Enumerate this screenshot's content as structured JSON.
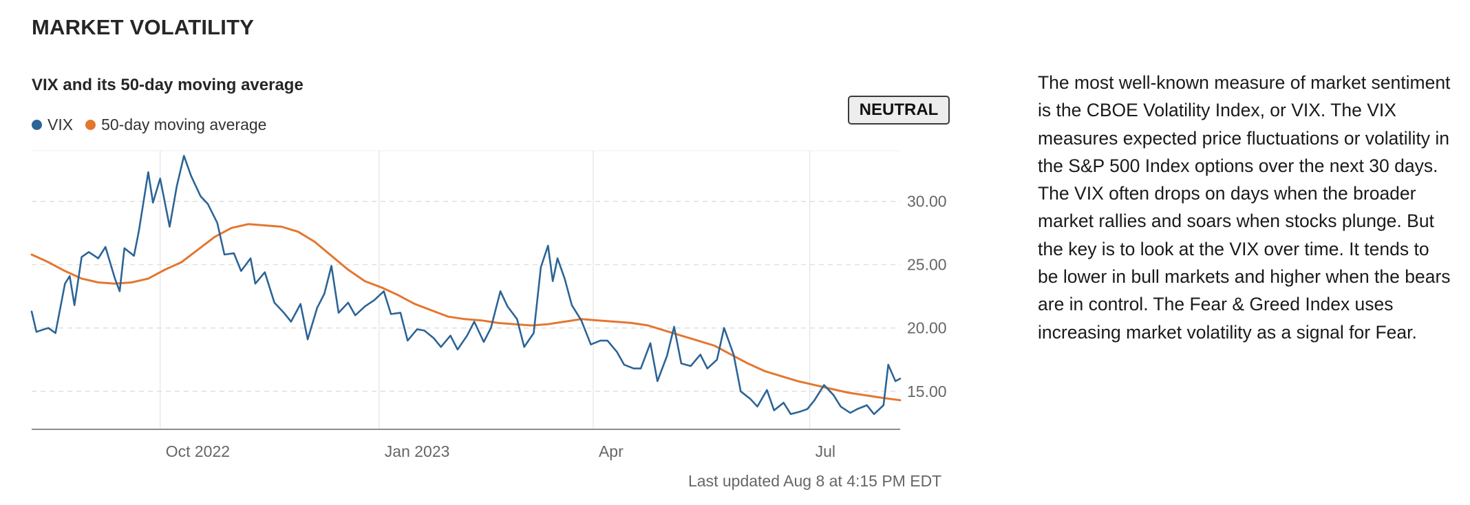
{
  "header": {
    "title": "MARKET VOLATILITY"
  },
  "badge": {
    "label": "NEUTRAL"
  },
  "updated": "Last updated Aug 8 at 4:15 PM EDT",
  "description": "The most well-known measure of market sentiment is the CBOE Volatility Index, or VIX. The VIX measures expected price fluctuations or volatility in the S&P 500 Index options over the next 30 days. The VIX often drops on days when the broader market rallies and soars when stocks plunge. But the key is to look at the VIX over time. It tends to be lower in bull markets and higher when the bears are in control. The Fear & Greed Index uses increasing market volatility as a signal for Fear.",
  "colors": {
    "vix": "#2b6496",
    "ma": "#e4762e",
    "grid": "#d9d9d9",
    "axis": "#8c8c8c"
  },
  "chart_data": {
    "type": "line",
    "title": "VIX and its 50-day moving average",
    "x_range": [
      "2022-08-08",
      "2023-08-08"
    ],
    "ylim": [
      12.0,
      34.0
    ],
    "y_ticks": [
      15,
      20,
      25,
      30
    ],
    "y_tick_labels": [
      "15.00",
      "20.00",
      "25.00",
      "30.00"
    ],
    "x_ticks": [
      {
        "date": "2022-10-01",
        "label": "Oct 2022"
      },
      {
        "date": "2023-01-01",
        "label": "Jan 2023"
      },
      {
        "date": "2023-04-01",
        "label": "Apr"
      },
      {
        "date": "2023-07-01",
        "label": "Jul"
      }
    ],
    "grid": true,
    "legend_position": "top-left",
    "series": [
      {
        "name": "VIX",
        "points": [
          [
            "2022-08-08",
            21.3
          ],
          [
            "2022-08-10",
            19.7
          ],
          [
            "2022-08-15",
            20.0
          ],
          [
            "2022-08-18",
            19.6
          ],
          [
            "2022-08-22",
            23.5
          ],
          [
            "2022-08-24",
            24.1
          ],
          [
            "2022-08-26",
            21.8
          ],
          [
            "2022-08-29",
            25.6
          ],
          [
            "2022-09-01",
            26.0
          ],
          [
            "2022-09-05",
            25.5
          ],
          [
            "2022-09-08",
            26.4
          ],
          [
            "2022-09-12",
            23.9
          ],
          [
            "2022-09-14",
            22.9
          ],
          [
            "2022-09-16",
            26.3
          ],
          [
            "2022-09-20",
            25.7
          ],
          [
            "2022-09-22",
            27.6
          ],
          [
            "2022-09-26",
            32.3
          ],
          [
            "2022-09-28",
            29.9
          ],
          [
            "2022-10-01",
            31.8
          ],
          [
            "2022-10-05",
            28.0
          ],
          [
            "2022-10-08",
            31.2
          ],
          [
            "2022-10-11",
            33.6
          ],
          [
            "2022-10-14",
            32.0
          ],
          [
            "2022-10-18",
            30.4
          ],
          [
            "2022-10-21",
            29.8
          ],
          [
            "2022-10-25",
            28.3
          ],
          [
            "2022-10-28",
            25.8
          ],
          [
            "2022-11-01",
            25.9
          ],
          [
            "2022-11-04",
            24.5
          ],
          [
            "2022-11-08",
            25.5
          ],
          [
            "2022-11-10",
            23.5
          ],
          [
            "2022-11-14",
            24.4
          ],
          [
            "2022-11-18",
            22.0
          ],
          [
            "2022-11-22",
            21.2
          ],
          [
            "2022-11-25",
            20.5
          ],
          [
            "2022-11-29",
            21.9
          ],
          [
            "2022-12-02",
            19.1
          ],
          [
            "2022-12-06",
            21.6
          ],
          [
            "2022-12-09",
            22.7
          ],
          [
            "2022-12-12",
            24.9
          ],
          [
            "2022-12-15",
            21.2
          ],
          [
            "2022-12-19",
            22.0
          ],
          [
            "2022-12-22",
            21.0
          ],
          [
            "2022-12-26",
            21.7
          ],
          [
            "2022-12-30",
            22.2
          ],
          [
            "2023-01-03",
            22.9
          ],
          [
            "2023-01-06",
            21.1
          ],
          [
            "2023-01-10",
            21.2
          ],
          [
            "2023-01-13",
            19.0
          ],
          [
            "2023-01-17",
            19.9
          ],
          [
            "2023-01-20",
            19.8
          ],
          [
            "2023-01-24",
            19.2
          ],
          [
            "2023-01-27",
            18.5
          ],
          [
            "2023-01-31",
            19.4
          ],
          [
            "2023-02-03",
            18.3
          ],
          [
            "2023-02-07",
            19.4
          ],
          [
            "2023-02-10",
            20.5
          ],
          [
            "2023-02-14",
            18.9
          ],
          [
            "2023-02-17",
            20.0
          ],
          [
            "2023-02-21",
            22.9
          ],
          [
            "2023-02-24",
            21.7
          ],
          [
            "2023-02-28",
            20.7
          ],
          [
            "2023-03-03",
            18.5
          ],
          [
            "2023-03-07",
            19.6
          ],
          [
            "2023-03-10",
            24.8
          ],
          [
            "2023-03-13",
            26.5
          ],
          [
            "2023-03-15",
            23.7
          ],
          [
            "2023-03-17",
            25.5
          ],
          [
            "2023-03-20",
            23.9
          ],
          [
            "2023-03-23",
            21.8
          ],
          [
            "2023-03-27",
            20.6
          ],
          [
            "2023-03-31",
            18.7
          ],
          [
            "2023-04-04",
            19.0
          ],
          [
            "2023-04-07",
            19.0
          ],
          [
            "2023-04-11",
            18.1
          ],
          [
            "2023-04-14",
            17.1
          ],
          [
            "2023-04-18",
            16.8
          ],
          [
            "2023-04-21",
            16.8
          ],
          [
            "2023-04-25",
            18.8
          ],
          [
            "2023-04-28",
            15.8
          ],
          [
            "2023-05-02",
            17.8
          ],
          [
            "2023-05-05",
            20.1
          ],
          [
            "2023-05-08",
            17.2
          ],
          [
            "2023-05-12",
            17.0
          ],
          [
            "2023-05-16",
            17.9
          ],
          [
            "2023-05-19",
            16.8
          ],
          [
            "2023-05-23",
            17.5
          ],
          [
            "2023-05-26",
            20.0
          ],
          [
            "2023-05-30",
            17.9
          ],
          [
            "2023-06-02",
            15.0
          ],
          [
            "2023-06-06",
            14.4
          ],
          [
            "2023-06-09",
            13.8
          ],
          [
            "2023-06-13",
            15.1
          ],
          [
            "2023-06-16",
            13.5
          ],
          [
            "2023-06-20",
            14.1
          ],
          [
            "2023-06-23",
            13.2
          ],
          [
            "2023-06-27",
            13.4
          ],
          [
            "2023-06-30",
            13.6
          ],
          [
            "2023-07-03",
            14.3
          ],
          [
            "2023-07-07",
            15.5
          ],
          [
            "2023-07-11",
            14.7
          ],
          [
            "2023-07-14",
            13.8
          ],
          [
            "2023-07-18",
            13.3
          ],
          [
            "2023-07-21",
            13.6
          ],
          [
            "2023-07-25",
            13.9
          ],
          [
            "2023-07-28",
            13.2
          ],
          [
            "2023-08-01",
            13.9
          ],
          [
            "2023-08-03",
            17.1
          ],
          [
            "2023-08-06",
            15.8
          ],
          [
            "2023-08-08",
            16.0
          ]
        ]
      },
      {
        "name": "50-day moving average",
        "points": [
          [
            "2022-08-08",
            25.8
          ],
          [
            "2022-08-15",
            25.2
          ],
          [
            "2022-08-22",
            24.5
          ],
          [
            "2022-08-29",
            23.9
          ],
          [
            "2022-09-05",
            23.6
          ],
          [
            "2022-09-12",
            23.5
          ],
          [
            "2022-09-19",
            23.6
          ],
          [
            "2022-09-26",
            23.9
          ],
          [
            "2022-10-03",
            24.6
          ],
          [
            "2022-10-10",
            25.2
          ],
          [
            "2022-10-17",
            26.2
          ],
          [
            "2022-10-24",
            27.2
          ],
          [
            "2022-10-31",
            27.9
          ],
          [
            "2022-11-07",
            28.2
          ],
          [
            "2022-11-14",
            28.1
          ],
          [
            "2022-11-21",
            28.0
          ],
          [
            "2022-11-28",
            27.6
          ],
          [
            "2022-12-05",
            26.8
          ],
          [
            "2022-12-12",
            25.7
          ],
          [
            "2022-12-19",
            24.6
          ],
          [
            "2022-12-26",
            23.7
          ],
          [
            "2023-01-02",
            23.2
          ],
          [
            "2023-01-09",
            22.6
          ],
          [
            "2023-01-16",
            21.9
          ],
          [
            "2023-01-23",
            21.4
          ],
          [
            "2023-01-30",
            20.9
          ],
          [
            "2023-02-06",
            20.7
          ],
          [
            "2023-02-13",
            20.6
          ],
          [
            "2023-02-20",
            20.4
          ],
          [
            "2023-02-27",
            20.3
          ],
          [
            "2023-03-06",
            20.2
          ],
          [
            "2023-03-13",
            20.3
          ],
          [
            "2023-03-20",
            20.5
          ],
          [
            "2023-03-27",
            20.7
          ],
          [
            "2023-04-03",
            20.6
          ],
          [
            "2023-04-10",
            20.5
          ],
          [
            "2023-04-17",
            20.4
          ],
          [
            "2023-04-24",
            20.2
          ],
          [
            "2023-05-01",
            19.8
          ],
          [
            "2023-05-08",
            19.4
          ],
          [
            "2023-05-15",
            19.0
          ],
          [
            "2023-05-22",
            18.6
          ],
          [
            "2023-05-29",
            17.9
          ],
          [
            "2023-06-05",
            17.2
          ],
          [
            "2023-06-12",
            16.6
          ],
          [
            "2023-06-19",
            16.2
          ],
          [
            "2023-06-26",
            15.8
          ],
          [
            "2023-07-03",
            15.5
          ],
          [
            "2023-07-10",
            15.2
          ],
          [
            "2023-07-17",
            14.9
          ],
          [
            "2023-07-24",
            14.7
          ],
          [
            "2023-07-31",
            14.5
          ],
          [
            "2023-08-08",
            14.3
          ]
        ]
      }
    ]
  }
}
